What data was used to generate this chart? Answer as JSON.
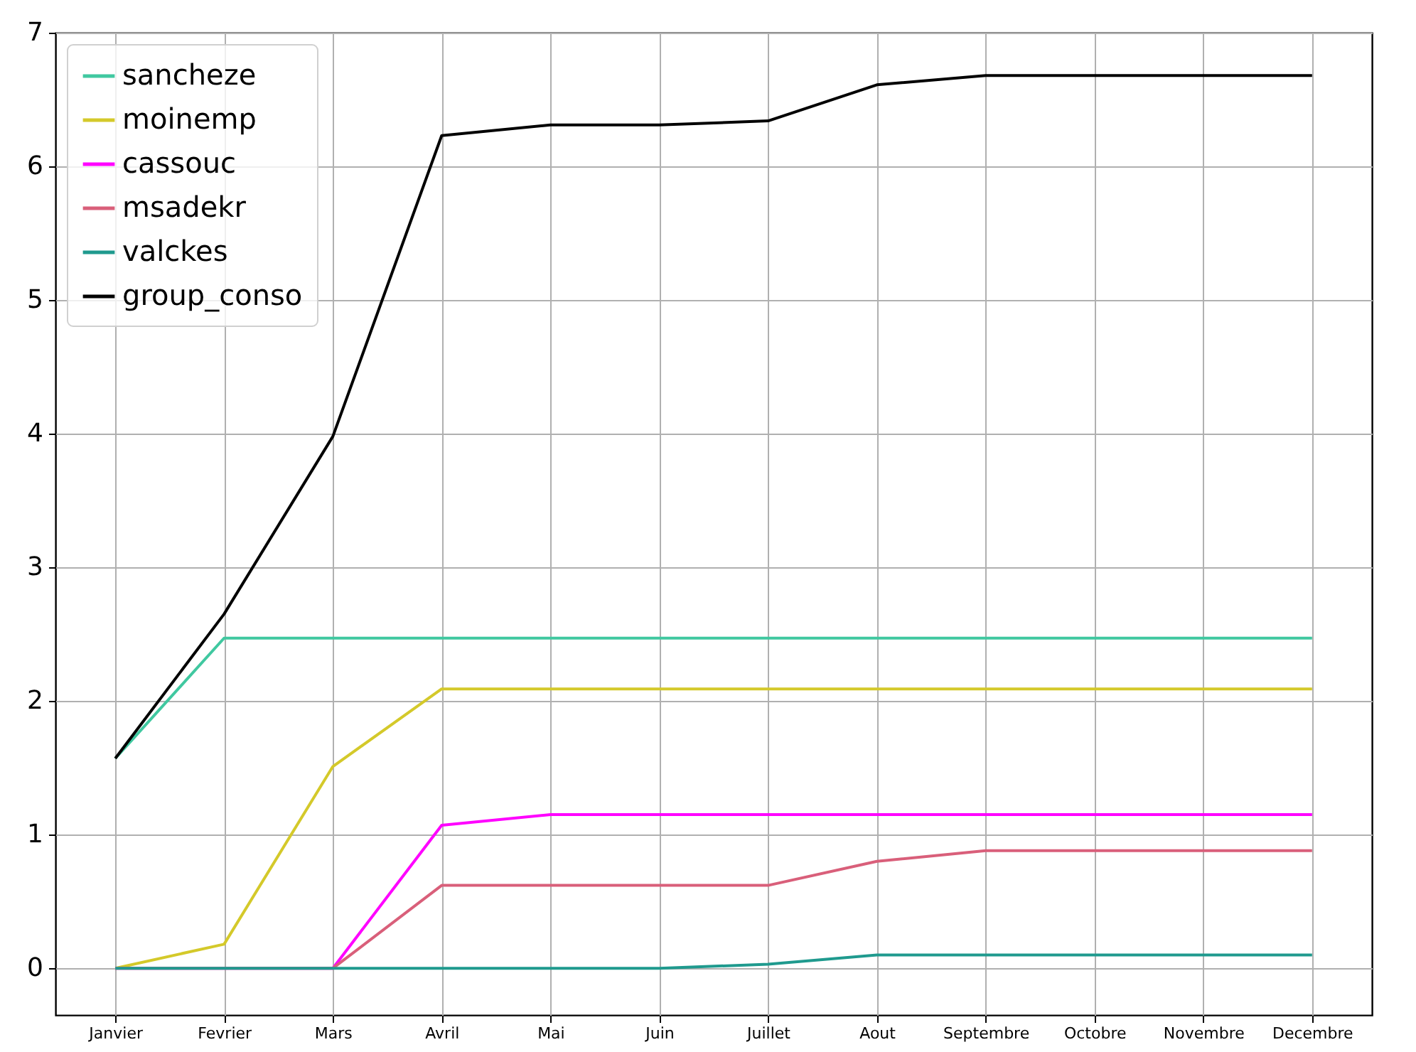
{
  "chart_data": {
    "type": "line",
    "categories": [
      "Janvier",
      "Fevrier",
      "Mars",
      "Avril",
      "Mai",
      "Juin",
      "Juillet",
      "Aout",
      "Septembre",
      "Octobre",
      "Novembre",
      "Decembre"
    ],
    "series": [
      {
        "name": "sancheze",
        "color": "#40c8a0",
        "values": [
          1.57,
          2.47,
          2.47,
          2.47,
          2.47,
          2.47,
          2.47,
          2.47,
          2.47,
          2.47,
          2.47,
          2.47
        ]
      },
      {
        "name": "moinemp",
        "color": "#d4c92a",
        "values": [
          0,
          0.18,
          1.51,
          2.09,
          2.09,
          2.09,
          2.09,
          2.09,
          2.09,
          2.09,
          2.09,
          2.09
        ]
      },
      {
        "name": "cassouc",
        "color": "#ff00ff",
        "values": [
          0,
          0,
          0,
          1.07,
          1.15,
          1.15,
          1.15,
          1.15,
          1.15,
          1.15,
          1.15,
          1.15
        ]
      },
      {
        "name": "msadekr",
        "color": "#d95f7a",
        "values": [
          0,
          0,
          0,
          0.62,
          0.62,
          0.62,
          0.62,
          0.8,
          0.88,
          0.88,
          0.88,
          0.88
        ]
      },
      {
        "name": "valckes",
        "color": "#1f9a8e",
        "values": [
          0,
          0,
          0,
          0,
          0,
          0,
          0.03,
          0.1,
          0.1,
          0.1,
          0.1,
          0.1
        ]
      },
      {
        "name": "group_conso",
        "color": "#000000",
        "values": [
          1.57,
          2.65,
          3.98,
          6.23,
          6.31,
          6.31,
          6.34,
          6.61,
          6.68,
          6.68,
          6.68,
          6.68
        ]
      }
    ],
    "ylim": [
      -0.35,
      7
    ],
    "yticks": [
      0,
      1,
      2,
      3,
      4,
      5,
      6,
      7
    ],
    "grid": true,
    "legend": "top left",
    "marker": "none",
    "line_style": "solid"
  }
}
